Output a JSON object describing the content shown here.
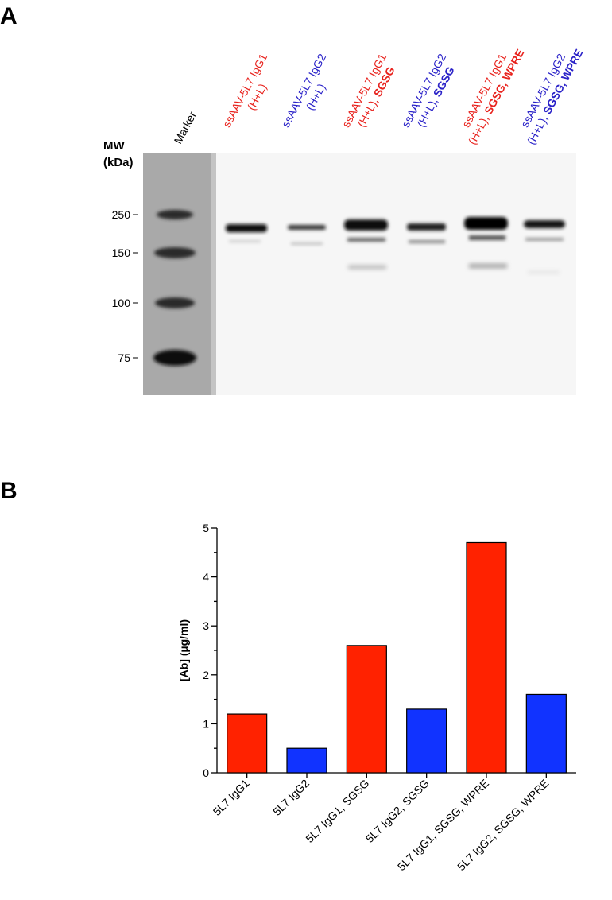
{
  "panel_labels": [
    "A",
    "B"
  ],
  "blot": {
    "mw_title": [
      "MW",
      "(kDa)"
    ],
    "mw_markers": [
      250,
      150,
      100,
      75
    ],
    "marker_label": "Marker",
    "lanes": [
      {
        "line1": "ssAAV-5L7 IgG1",
        "line2": [
          "(H+L)"
        ],
        "color": "#e8231e"
      },
      {
        "line1": "ssAAV-5L7 IgG2",
        "line2": [
          "(H+L)"
        ],
        "color": "#2a22c8"
      },
      {
        "line1": "ssAAV-5L7 IgG1",
        "line2": [
          "(H+L),",
          "SGSG"
        ],
        "color": "#e8231e"
      },
      {
        "line1": "ssAAV-5L7 IgG2",
        "line2": [
          "(H+L),",
          "SGSG"
        ],
        "color": "#2a22c8"
      },
      {
        "line1": "ssAAV-5L7 IgG1",
        "line2": [
          "(H+L),",
          "SGSG, WPRE"
        ],
        "color": "#e8231e"
      },
      {
        "line1": "ssAAV-5L7 IgG2",
        "line2": [
          "(H+L),",
          "SGSG, WPRE"
        ],
        "color": "#2a22c8"
      }
    ]
  },
  "chart_data": {
    "type": "bar",
    "y_label": "[Ab] (µg/ml)",
    "categories": [
      "5L7 IgG1",
      "5L7 IgG2",
      "5L7 IgG1, SGSG",
      "5L7 IgG2, SGSG",
      "5L7 IgG1, SGSG, WPRE",
      "5L7 IgG2, SGSG, WPRE"
    ],
    "values": [
      1.2,
      0.5,
      2.6,
      1.3,
      4.7,
      1.6
    ],
    "colors": [
      "#ff2200",
      "#1133ff",
      "#ff2200",
      "#1133ff",
      "#ff2200",
      "#1133ff"
    ],
    "ylim": [
      0,
      5
    ],
    "yticks": [
      0,
      1,
      2,
      3,
      4,
      5
    ]
  }
}
